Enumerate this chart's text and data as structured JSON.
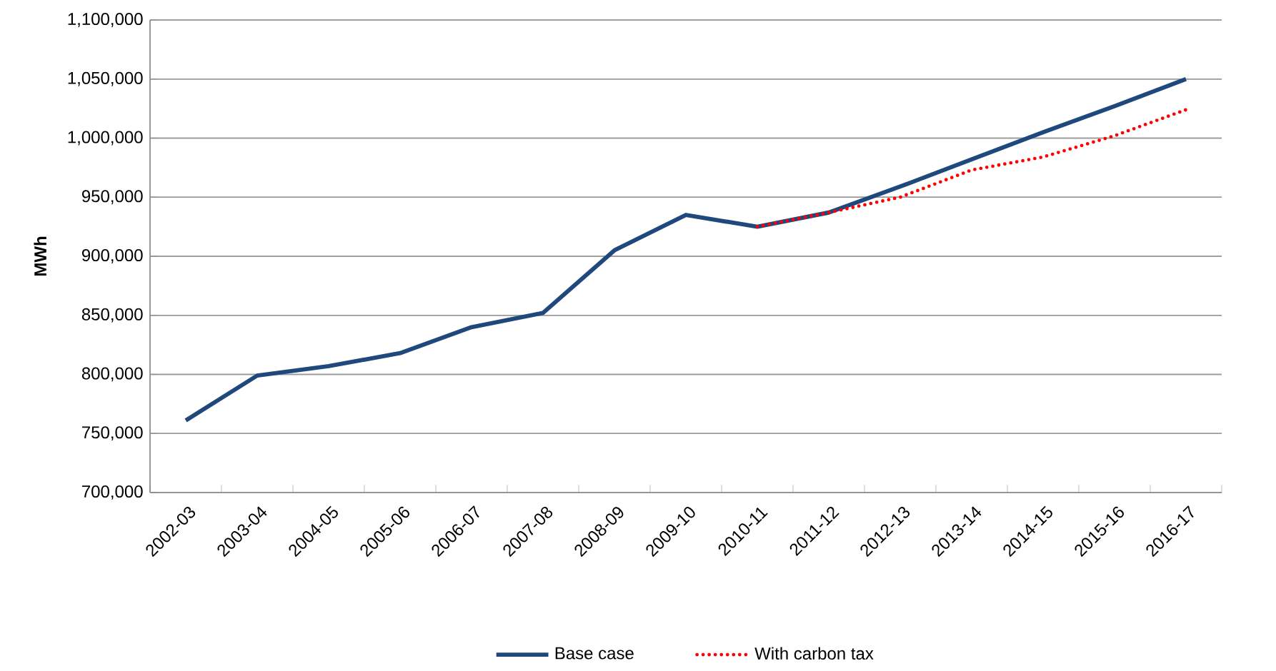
{
  "chart_data": {
    "type": "line",
    "ylabel": "MWh",
    "categories": [
      "2002-03",
      "2003-04",
      "2004-05",
      "2005-06",
      "2006-07",
      "2007-08",
      "2008-09",
      "2009-10",
      "2010-11",
      "2011-12",
      "2012-13",
      "2013-14",
      "2014-15",
      "2015-16",
      "2016-17"
    ],
    "series": [
      {
        "name": "Base case",
        "color": "#1f497d",
        "line_style": "solid",
        "values": [
          761000,
          799000,
          807000,
          818000,
          840000,
          852000,
          905000,
          935000,
          925000,
          937000,
          959000,
          982000,
          1005000,
          1027000,
          1050000
        ]
      },
      {
        "name": "With carbon tax",
        "color": "#ff0000",
        "line_style": "dotted",
        "values": [
          null,
          null,
          null,
          null,
          null,
          null,
          null,
          null,
          925000,
          937000,
          950000,
          973000,
          984000,
          1002000,
          1024000
        ]
      }
    ],
    "ylim": [
      700000,
      1100000
    ],
    "yticks": [
      {
        "value": 700000,
        "label": "700,000"
      },
      {
        "value": 750000,
        "label": "750,000"
      },
      {
        "value": 800000,
        "label": "800,000"
      },
      {
        "value": 850000,
        "label": "850,000"
      },
      {
        "value": 900000,
        "label": "900,000"
      },
      {
        "value": 950000,
        "label": "950,000"
      },
      {
        "value": 1000000,
        "label": "1,000,000"
      },
      {
        "value": 1050000,
        "label": "1,050,000"
      },
      {
        "value": 1100000,
        "label": "1,100,000"
      }
    ],
    "grid": "y",
    "legend": "bottom",
    "marker": "none"
  }
}
